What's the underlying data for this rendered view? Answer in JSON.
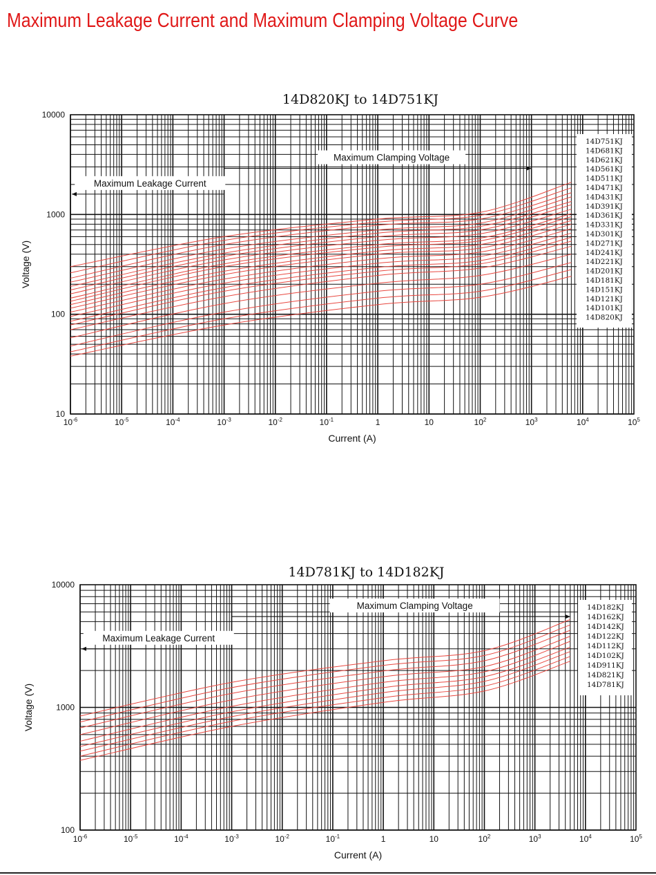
{
  "page": {
    "title": "Maximum Leakage Current and Maximum Clamping Voltage Curve",
    "title_color": "#e01818"
  },
  "colors": {
    "curve": "#e8473f",
    "grid": "#111111",
    "legend_bg": "#ffffff"
  },
  "chart_data": [
    {
      "type": "line",
      "title": "14D820KJ to 14D751KJ",
      "xlabel": "Current (A)",
      "ylabel": "Voltage (V)",
      "x_scale": "log",
      "y_scale": "log",
      "xlim": [
        1e-06,
        100000
      ],
      "ylim": [
        10,
        10000
      ],
      "x_ticks": [
        {
          "value": 1e-06,
          "base": "10",
          "exp": "-6"
        },
        {
          "value": 1e-05,
          "base": "10",
          "exp": "-5"
        },
        {
          "value": 0.0001,
          "base": "10",
          "exp": "-4"
        },
        {
          "value": 0.001,
          "base": "10",
          "exp": "-3"
        },
        {
          "value": 0.01,
          "base": "10",
          "exp": "-2"
        },
        {
          "value": 0.1,
          "base": "10",
          "exp": "-1"
        },
        {
          "value": 1,
          "base": "1",
          "exp": ""
        },
        {
          "value": 10,
          "base": "10",
          "exp": ""
        },
        {
          "value": 100,
          "base": "10",
          "exp": "2"
        },
        {
          "value": 1000,
          "base": "10",
          "exp": "3"
        },
        {
          "value": 10000,
          "base": "10",
          "exp": "4"
        },
        {
          "value": 100000,
          "base": "10",
          "exp": "5"
        }
      ],
      "y_ticks": [
        {
          "value": 10,
          "label": "10"
        },
        {
          "value": 100,
          "label": "100"
        },
        {
          "value": 1000,
          "label": "1000"
        },
        {
          "value": 10000,
          "label": "10000"
        }
      ],
      "grid": true,
      "legend_position": "right",
      "annotations": [
        {
          "text": "Maximum Leakage Current",
          "arrow_from": 0.001,
          "arrow_to": 1e-06,
          "y": 1600
        },
        {
          "text": "Maximum Clamping Voltage",
          "arrow_from": 0.001,
          "arrow_to": 1000,
          "y": 2900
        }
      ],
      "legend": [
        "14D751KJ",
        "14D681KJ",
        "14D621KJ",
        "14D561KJ",
        "14D511KJ",
        "14D471KJ",
        "14D431KJ",
        "14D391KJ",
        "14D361KJ",
        "14D331KJ",
        "14D301KJ",
        "14D271KJ",
        "14D241KJ",
        "14D221KJ",
        "14D201KJ",
        "14D181KJ",
        "14D151KJ",
        "14D121KJ",
        "14D101KJ",
        "14D820KJ"
      ],
      "series": [
        {
          "name": "14D751KJ",
          "x": [
            1e-06,
            0.001,
            1,
            100,
            6000
          ],
          "y": [
            300,
            600,
            900,
            1050,
            2100
          ]
        },
        {
          "name": "14D681KJ",
          "x": [
            1e-06,
            0.001,
            1,
            100,
            6000
          ],
          "y": [
            260,
            550,
            840,
            980,
            1850
          ]
        },
        {
          "name": "14D621KJ",
          "x": [
            1e-06,
            0.001,
            1,
            100,
            6000
          ],
          "y": [
            230,
            500,
            780,
            900,
            1650
          ]
        },
        {
          "name": "14D561KJ",
          "x": [
            1e-06,
            0.001,
            1,
            100,
            6000
          ],
          "y": [
            210,
            450,
            700,
            820,
            1500
          ]
        },
        {
          "name": "14D511KJ",
          "x": [
            1e-06,
            0.001,
            1,
            100,
            6000
          ],
          "y": [
            190,
            410,
            650,
            760,
            1350
          ]
        },
        {
          "name": "14D471KJ",
          "x": [
            1e-06,
            0.001,
            1,
            100,
            6000
          ],
          "y": [
            175,
            380,
            600,
            700,
            1250
          ]
        },
        {
          "name": "14D431KJ",
          "x": [
            1e-06,
            0.001,
            1,
            100,
            6000
          ],
          "y": [
            160,
            350,
            550,
            640,
            1130
          ]
        },
        {
          "name": "14D391KJ",
          "x": [
            1e-06,
            0.001,
            1,
            100,
            6000
          ],
          "y": [
            145,
            320,
            500,
            580,
            1020
          ]
        },
        {
          "name": "14D361KJ",
          "x": [
            1e-06,
            0.001,
            1,
            100,
            6000
          ],
          "y": [
            135,
            300,
            470,
            545,
            950
          ]
        },
        {
          "name": "14D331KJ",
          "x": [
            1e-06,
            0.001,
            1,
            100,
            6000
          ],
          "y": [
            125,
            270,
            430,
            500,
            870
          ]
        },
        {
          "name": "14D301KJ",
          "x": [
            1e-06,
            0.001,
            1,
            100,
            6000
          ],
          "y": [
            115,
            250,
            400,
            460,
            800
          ]
        },
        {
          "name": "14D271KJ",
          "x": [
            1e-06,
            0.001,
            1,
            100,
            6000
          ],
          "y": [
            105,
            225,
            360,
            420,
            720
          ]
        },
        {
          "name": "14D241KJ",
          "x": [
            1e-06,
            0.001,
            1,
            100,
            6000
          ],
          "y": [
            95,
            205,
            325,
            380,
            650
          ]
        },
        {
          "name": "14D221KJ",
          "x": [
            1e-06,
            0.001,
            1,
            100,
            6000
          ],
          "y": [
            85,
            185,
            295,
            345,
            590
          ]
        },
        {
          "name": "14D201KJ",
          "x": [
            1e-06,
            0.001,
            1,
            100,
            6000
          ],
          "y": [
            78,
            170,
            270,
            320,
            540
          ]
        },
        {
          "name": "14D181KJ",
          "x": [
            1e-06,
            0.001,
            1,
            100,
            6000
          ],
          "y": [
            70,
            150,
            245,
            290,
            480
          ]
        },
        {
          "name": "14D151KJ",
          "x": [
            1e-06,
            0.001,
            1,
            100,
            6000
          ],
          "y": [
            58,
            128,
            205,
            245,
            400
          ]
        },
        {
          "name": "14D121KJ",
          "x": [
            1e-06,
            0.001,
            1,
            100,
            6000
          ],
          "y": [
            48,
            105,
            170,
            200,
            330
          ]
        },
        {
          "name": "14D101KJ",
          "x": [
            1e-06,
            0.001,
            1,
            100,
            6000
          ],
          "y": [
            42,
            90,
            145,
            170,
            280
          ]
        },
        {
          "name": "14D820KJ",
          "x": [
            1e-06,
            0.001,
            1,
            100,
            6000
          ],
          "y": [
            38,
            78,
            125,
            148,
            240
          ]
        }
      ]
    },
    {
      "type": "line",
      "title": "14D781KJ to 14D182KJ",
      "xlabel": "Current (A)",
      "ylabel": "Voltage (V)",
      "x_scale": "log",
      "y_scale": "log",
      "xlim": [
        1e-06,
        100000
      ],
      "ylim": [
        100,
        10000
      ],
      "x_ticks": [
        {
          "value": 1e-06,
          "base": "10",
          "exp": "-6"
        },
        {
          "value": 1e-05,
          "base": "10",
          "exp": "-5"
        },
        {
          "value": 0.0001,
          "base": "10",
          "exp": "-4"
        },
        {
          "value": 0.001,
          "base": "10",
          "exp": "-3"
        },
        {
          "value": 0.01,
          "base": "10",
          "exp": "-2"
        },
        {
          "value": 0.1,
          "base": "10",
          "exp": "-1"
        },
        {
          "value": 1,
          "base": "1",
          "exp": ""
        },
        {
          "value": 10,
          "base": "10",
          "exp": ""
        },
        {
          "value": 100,
          "base": "10",
          "exp": "2"
        },
        {
          "value": 1000,
          "base": "10",
          "exp": "3"
        },
        {
          "value": 10000,
          "base": "10",
          "exp": "4"
        },
        {
          "value": 100000,
          "base": "10",
          "exp": "5"
        }
      ],
      "y_ticks": [
        {
          "value": 100,
          "label": "100"
        },
        {
          "value": 1000,
          "label": "1000"
        },
        {
          "value": 10000,
          "label": "10000"
        }
      ],
      "grid": true,
      "legend_position": "right",
      "annotations": [
        {
          "text": "Maximum Leakage Current",
          "arrow_from": 0.001,
          "arrow_to": 1e-06,
          "y": 3000
        },
        {
          "text": "Maximum Clamping Voltage",
          "arrow_from": 0.001,
          "arrow_to": 5000,
          "y": 5500
        }
      ],
      "legend": [
        "14D182KJ",
        "14D162KJ",
        "14D142KJ",
        "14D122KJ",
        "14D112KJ",
        "14D102KJ",
        "14D911KJ",
        "14D821KJ",
        "14D781KJ"
      ],
      "series": [
        {
          "name": "14D182KJ",
          "x": [
            1e-06,
            0.001,
            1,
            100,
            5000
          ],
          "y": [
            850,
            1600,
            2400,
            2900,
            5200
          ]
        },
        {
          "name": "14D162KJ",
          "x": [
            1e-06,
            0.001,
            1,
            100,
            5000
          ],
          "y": [
            760,
            1450,
            2200,
            2650,
            4700
          ]
        },
        {
          "name": "14D142KJ",
          "x": [
            1e-06,
            0.001,
            1,
            100,
            5000
          ],
          "y": [
            680,
            1300,
            1980,
            2400,
            4250
          ]
        },
        {
          "name": "14D122KJ",
          "x": [
            1e-06,
            0.001,
            1,
            100,
            5000
          ],
          "y": [
            600,
            1150,
            1780,
            2150,
            3800
          ]
        },
        {
          "name": "14D112KJ",
          "x": [
            1e-06,
            0.001,
            1,
            100,
            5000
          ],
          "y": [
            530,
            1020,
            1600,
            1950,
            3450
          ]
        },
        {
          "name": "14D102KJ",
          "x": [
            1e-06,
            0.001,
            1,
            100,
            5000
          ],
          "y": [
            480,
            920,
            1450,
            1780,
            3100
          ]
        },
        {
          "name": "14D911KJ",
          "x": [
            1e-06,
            0.001,
            1,
            100,
            5000
          ],
          "y": [
            440,
            840,
            1320,
            1630,
            2850
          ]
        },
        {
          "name": "14D821KJ",
          "x": [
            1e-06,
            0.001,
            1,
            100,
            5000
          ],
          "y": [
            400,
            770,
            1200,
            1490,
            2600
          ]
        },
        {
          "name": "14D781KJ",
          "x": [
            1e-06,
            0.001,
            1,
            100,
            5000
          ],
          "y": [
            370,
            700,
            1100,
            1360,
            2380
          ]
        }
      ]
    }
  ]
}
